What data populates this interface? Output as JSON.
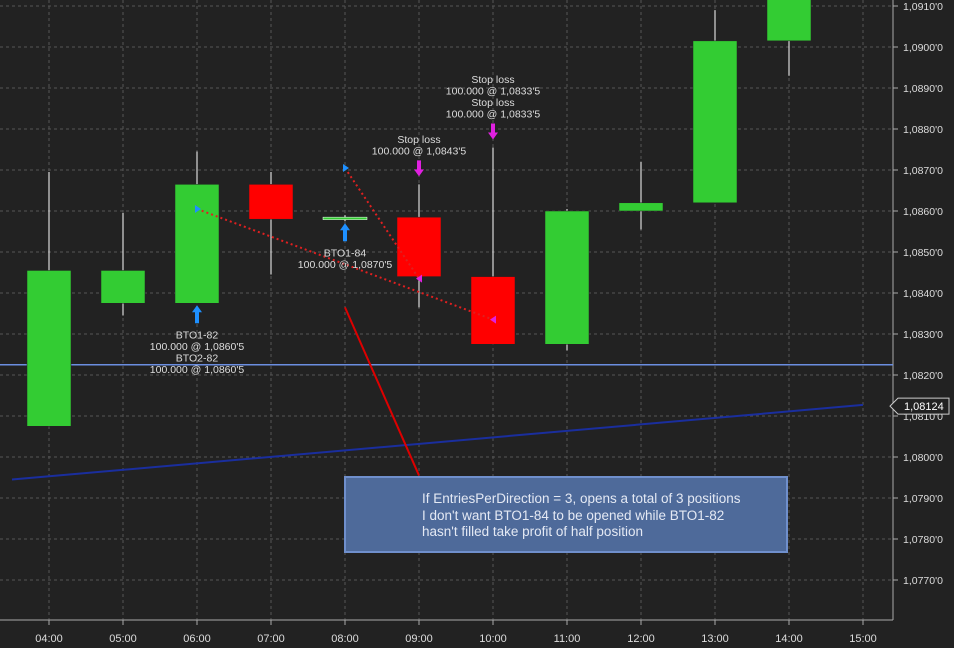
{
  "chart_data": {
    "type": "candlestick",
    "x": [
      "04:00",
      "05:00",
      "06:00",
      "07:00",
      "08:00",
      "09:00",
      "10:00",
      "11:00",
      "12:00",
      "13:00",
      "14:00",
      "15:00"
    ],
    "ohlc": [
      {
        "x": "04:00",
        "open": 1.08075,
        "high": 1.08695,
        "low": 1.08075,
        "close": 1.08455
      },
      {
        "x": "05:00",
        "open": 1.08375,
        "high": 1.08595,
        "low": 1.08345,
        "close": 1.08455
      },
      {
        "x": "06:00",
        "open": 1.08375,
        "high": 1.08745,
        "low": 1.08375,
        "close": 1.08665
      },
      {
        "x": "07:00",
        "open": 1.08665,
        "high": 1.08695,
        "low": 1.08445,
        "close": 1.0858
      },
      {
        "x": "08:00",
        "open": 1.0858,
        "high": 1.0859,
        "low": 1.08575,
        "close": 1.08585
      },
      {
        "x": "09:00",
        "open": 1.08585,
        "high": 1.08665,
        "low": 1.08365,
        "close": 1.0844
      },
      {
        "x": "10:00",
        "open": 1.0844,
        "high": 1.08755,
        "low": 1.08275,
        "close": 1.08275
      },
      {
        "x": "11:00",
        "open": 1.08275,
        "high": 1.08605,
        "low": 1.0826,
        "close": 1.086
      },
      {
        "x": "12:00",
        "open": 1.086,
        "high": 1.0872,
        "low": 1.08555,
        "close": 1.0862
      },
      {
        "x": "13:00",
        "open": 1.0862,
        "high": 1.0909,
        "low": 1.0862,
        "close": 1.09015
      },
      {
        "x": "14:00",
        "open": 1.09015,
        "high": 1.09175,
        "low": 1.0893,
        "close": 1.09175
      }
    ],
    "y_ticks": [
      "1,0770'0",
      "1,0780'0",
      "1,0790'0",
      "1,0800'0",
      "1,0810'0",
      "1,0820'0",
      "1,0830'0",
      "1,0840'0",
      "1,0850'0",
      "1,0860'0",
      "1,0870'0",
      "1,0880'0",
      "1,0890'0",
      "1,0900'0",
      "1,0910'0"
    ],
    "ylim": [
      1.0765,
      1.0913
    ],
    "current_price": {
      "label": "1,08124",
      "value": 1.08124
    },
    "horizontal_line": {
      "value": 1.08225,
      "color": "#6b8ee0"
    },
    "moving_average": {
      "color": "#1a2e9e",
      "points": [
        {
          "x": "03:30",
          "y": 1.07945
        },
        {
          "x": "15:00",
          "y": 1.08127
        }
      ]
    },
    "trades": [
      {
        "x": "06:00",
        "y": 1.08375,
        "direction": "buy",
        "lines": [
          "BTO1-82",
          "100.000 @ 1,0860'5",
          "BTO2-82",
          "100.000 @ 1,0860'5"
        ]
      },
      {
        "x": "08:00",
        "y": 1.08575,
        "direction": "buy",
        "lines": [
          "BTO1-84",
          "100.000 @ 1,0870'5"
        ]
      },
      {
        "x": "09:00",
        "y": 1.08665,
        "direction": "sell",
        "lines": [
          "Stop loss",
          "100.000 @ 1,0843'5"
        ]
      },
      {
        "x": "10:00",
        "y": 1.08755,
        "direction": "sell",
        "lines": [
          "Stop loss",
          "100.000 @ 1,0833'5",
          "Stop loss",
          "100.000 @ 1,0833'5"
        ]
      }
    ],
    "trade_links": [
      {
        "from": {
          "x": "06:00",
          "y": 1.08605
        },
        "to": {
          "x": "10:00",
          "y": 1.08335
        }
      },
      {
        "from": {
          "x": "08:00",
          "y": 1.08705
        },
        "to": {
          "x": "09:00",
          "y": 1.08435
        }
      }
    ],
    "colors": {
      "up": "#33cc33",
      "down": "#ff0000",
      "buy_arrow": "#1e90ff",
      "sell_arrow": "#e020e0",
      "link": "#e02020",
      "grid": "#555555",
      "text": "#dddddd"
    },
    "annotation": {
      "lines": [
        "If EntriesPerDirection = 3, opens a total of 3 positions",
        "I don't  want BTO1-84 to be opened while BTO1-82",
        "hasn't filled take profit of half position"
      ],
      "pointer": {
        "from": {
          "x": "08:00",
          "y": 1.08365
        },
        "to": {
          "x": "09:00",
          "y": 1.07955
        }
      },
      "pointer_color": "#dd0000"
    }
  }
}
